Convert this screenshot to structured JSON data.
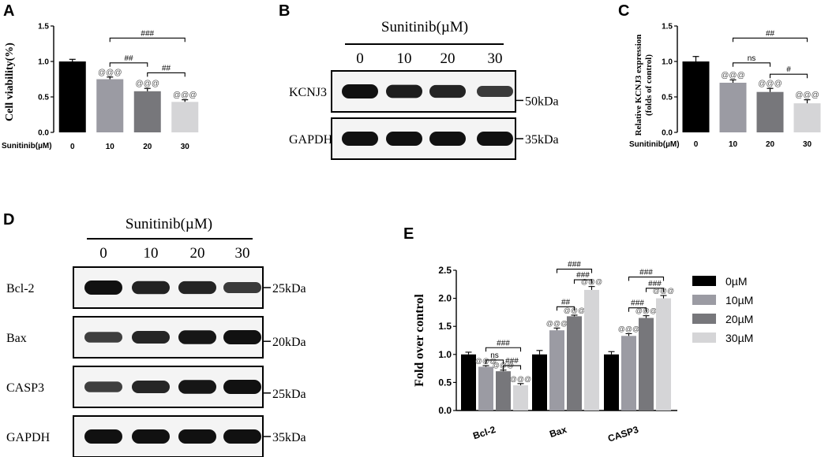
{
  "panels": {
    "A": {
      "letter": "A",
      "title": "",
      "ylabel": "Cell viability(%)",
      "row_label": "Sunitinib(µM)",
      "ylim": [
        0,
        1.5
      ],
      "yticks": [
        "0.0",
        "0.5",
        "1.0",
        "1.5"
      ],
      "type": "bar"
    },
    "B": {
      "letter": "B",
      "treatment": "Sunitinib(µM)",
      "lanes": [
        "0",
        "10",
        "20",
        "30"
      ],
      "blots": [
        {
          "label": "KCNJ3",
          "size": "50kDa",
          "intensity": [
            1.0,
            0.88,
            0.82,
            0.6
          ]
        },
        {
          "label": "GAPDH",
          "size": "35kDa",
          "intensity": [
            1.0,
            1.0,
            1.0,
            1.0
          ]
        }
      ]
    },
    "C": {
      "letter": "C",
      "ylabel_line1": "Relative KCNJ3 expression",
      "ylabel_line2": "(folds of control)",
      "row_label": "Sunitinib(µM)",
      "ylim": [
        0,
        1.5
      ],
      "yticks": [
        "0.0",
        "0.5",
        "1.0",
        "1.5"
      ]
    },
    "D": {
      "letter": "D",
      "treatment": "Sunitinib(µM)",
      "lanes": [
        "0",
        "10",
        "20",
        "30"
      ],
      "blots": [
        {
          "label": "Bcl-2",
          "size": "25kDa",
          "intensity": [
            1.0,
            0.85,
            0.82,
            0.6
          ]
        },
        {
          "label": "Bax",
          "size": "20kDa",
          "intensity": [
            0.55,
            0.8,
            0.95,
            1.0
          ]
        },
        {
          "label": "CASP3",
          "size": "25kDa",
          "intensity": [
            0.55,
            0.8,
            0.95,
            1.0
          ]
        },
        {
          "label": "GAPDH",
          "size": "35kDa",
          "intensity": [
            1.0,
            1.0,
            1.0,
            1.0
          ]
        }
      ]
    },
    "E": {
      "letter": "E",
      "ylabel": "Fold over control",
      "ylim": [
        0,
        2.5
      ],
      "yticks": [
        "0.0",
        "0.5",
        "1.0",
        "1.5",
        "2.0",
        "2.5"
      ]
    }
  },
  "chart_data": [
    {
      "type": "bar",
      "ylabel": "Cell viability(%)",
      "xlabel": "Sunitinib(µM)",
      "categories": [
        "0",
        "10",
        "20",
        "30"
      ],
      "values": [
        1.0,
        0.75,
        0.58,
        0.43
      ],
      "errors": [
        0.03,
        0.03,
        0.04,
        0.03
      ],
      "colors": [
        "#000000",
        "#9b9ba3",
        "#77777b",
        "#d5d5d7"
      ],
      "ylim": [
        0,
        1.5
      ],
      "point_labels": [
        "",
        "@@@",
        "@@@",
        "@@@"
      ],
      "brackets": [
        {
          "from": 1,
          "to": 3,
          "label": "###",
          "y": 1.33
        },
        {
          "from": 1,
          "to": 2,
          "label": "##",
          "y": 0.98
        },
        {
          "from": 2,
          "to": 3,
          "label": "##",
          "y": 0.84
        }
      ]
    },
    {
      "type": "bar",
      "ylabel": "Relative KCNJ3 expression (folds of control)",
      "xlabel": "Sunitinib(µM)",
      "categories": [
        "0",
        "10",
        "20",
        "30"
      ],
      "values": [
        1.0,
        0.7,
        0.57,
        0.41
      ],
      "errors": [
        0.07,
        0.04,
        0.05,
        0.05
      ],
      "colors": [
        "#000000",
        "#9b9ba3",
        "#77777b",
        "#d5d5d7"
      ],
      "ylim": [
        0,
        1.5
      ],
      "point_labels": [
        "",
        "@@@",
        "@@@",
        "@@@"
      ],
      "brackets": [
        {
          "from": 1,
          "to": 3,
          "label": "##",
          "y": 1.33
        },
        {
          "from": 1,
          "to": 2,
          "label": "ns",
          "y": 0.98
        },
        {
          "from": 2,
          "to": 3,
          "label": "#",
          "y": 0.82
        }
      ]
    },
    {
      "type": "bar",
      "ylabel": "Fold over control",
      "categories": [
        "Bcl-2",
        "Bax",
        "CASP3"
      ],
      "ylim": [
        0,
        2.5
      ],
      "legend": "right",
      "series": [
        {
          "name": "0µM",
          "color": "#000000",
          "values": [
            1.0,
            1.0,
            1.0
          ],
          "errors": [
            0.04,
            0.07,
            0.05
          ],
          "labels": [
            "",
            "",
            ""
          ]
        },
        {
          "name": "10µM",
          "color": "#9b9ba3",
          "values": [
            0.78,
            1.43,
            1.33
          ],
          "errors": [
            0.02,
            0.04,
            0.04
          ],
          "labels": [
            "@@@",
            "@@@",
            "@@@"
          ]
        },
        {
          "name": "20µM",
          "color": "#77777b",
          "values": [
            0.7,
            1.68,
            1.65
          ],
          "errors": [
            0.02,
            0.02,
            0.04
          ],
          "labels": [
            "@@@",
            "@@@",
            "@@@"
          ]
        },
        {
          "name": "30µM",
          "color": "#d5d5d7",
          "values": [
            0.45,
            2.15,
            2.0
          ],
          "errors": [
            0.03,
            0.06,
            0.05
          ],
          "labels": [
            "@@@",
            "@@@",
            "@@@"
          ]
        }
      ],
      "brackets": [
        {
          "group": 0,
          "from": 1,
          "to": 3,
          "label": "###",
          "y": 1.12
        },
        {
          "group": 0,
          "from": 1,
          "to": 2,
          "label": "ns",
          "y": 0.9
        },
        {
          "group": 0,
          "from": 2,
          "to": 3,
          "label": "###",
          "y": 0.8
        },
        {
          "group": 1,
          "from": 1,
          "to": 3,
          "label": "###",
          "y": 2.52
        },
        {
          "group": 1,
          "from": 2,
          "to": 3,
          "label": "###",
          "y": 2.33
        },
        {
          "group": 1,
          "from": 1,
          "to": 2,
          "label": "##",
          "y": 1.85
        },
        {
          "group": 2,
          "from": 1,
          "to": 3,
          "label": "###",
          "y": 2.38
        },
        {
          "group": 2,
          "from": 2,
          "to": 3,
          "label": "###",
          "y": 2.18
        },
        {
          "group": 2,
          "from": 1,
          "to": 2,
          "label": "###",
          "y": 1.83
        }
      ]
    }
  ]
}
